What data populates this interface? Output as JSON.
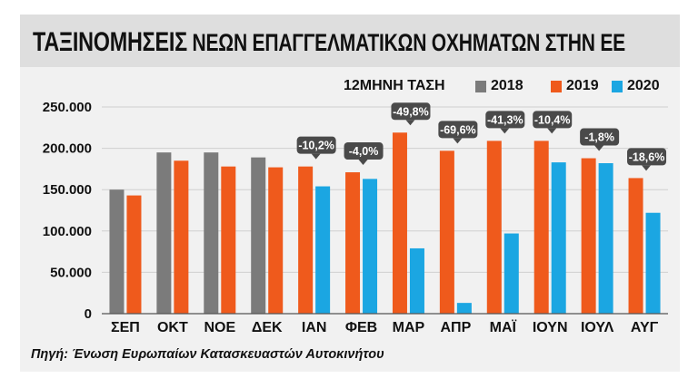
{
  "title_lead": "ΤΑΞΙΝΟΜΗΣΕΙΣ",
  "title_rest": "ΝΕΩΝ ΕΠΑΓΓΕΛΜΑΤΙΚΩΝ ΟΧΗΜΑΤΩΝ ΣΤΗΝ ΕΕ",
  "annotation_header": "12ΜΗΝΗ ΤΑΣΗ",
  "source": "Πηγή: Ένωση Ευρωπαίων Κατασκευαστών Αυτοκινήτου",
  "colors": {
    "2018": "#7b7b7b",
    "2019": "#ef5a1c",
    "2020": "#1ba6e2",
    "callout": "#4a4a4a"
  },
  "chart_data": {
    "type": "bar",
    "title": "ΤΑΞΙΝΟΜΗΣΕΙΣ ΝΕΩΝ ΕΠΑΓΓΕΛΜΑΤΙΚΩΝ ΟΧΗΜΑΤΩΝ ΣΤΗΝ ΕΕ",
    "categories": [
      "ΣΕΠ",
      "ΟΚΤ",
      "ΝΟΕ",
      "ΔΕΚ",
      "ΙΑΝ",
      "ΦΕΒ",
      "ΜΑΡ",
      "ΑΠΡ",
      "ΜΑΪ",
      "ΙΟΥΝ",
      "ΙΟΥΛ",
      "ΑΥΓ"
    ],
    "series": [
      {
        "name": "2018",
        "values": [
          150000,
          195000,
          195000,
          189000,
          null,
          null,
          null,
          null,
          null,
          null,
          null,
          null
        ]
      },
      {
        "name": "2019",
        "values": [
          143000,
          185000,
          178000,
          177000,
          178000,
          171000,
          219000,
          197000,
          209000,
          209000,
          188000,
          164000
        ]
      },
      {
        "name": "2020",
        "values": [
          null,
          null,
          null,
          null,
          154000,
          163000,
          79000,
          13000,
          97000,
          183000,
          182000,
          122000
        ]
      }
    ],
    "yticks": [
      0,
      50000,
      100000,
      150000,
      200000,
      250000
    ],
    "ytick_labels": [
      "0",
      "50.000",
      "100.000",
      "150.000",
      "200.000",
      "250.000"
    ],
    "ylim": [
      0,
      250000
    ],
    "legend": [
      "2018",
      "2019",
      "2020"
    ],
    "annotations": [
      {
        "category": "ΙΑΝ",
        "text": "-10,2%"
      },
      {
        "category": "ΦΕΒ",
        "text": "-4,0%"
      },
      {
        "category": "ΜΑΡ",
        "text": "-49,8%"
      },
      {
        "category": "ΑΠΡ",
        "text": "-69,6%"
      },
      {
        "category": "ΜΑΪ",
        "text": "-41,3%"
      },
      {
        "category": "ΙΟΥΝ",
        "text": "-10,4%"
      },
      {
        "category": "ΙΟΥΛ",
        "text": "-1,8%"
      },
      {
        "category": "ΑΥΓ",
        "text": "-18,6%"
      }
    ]
  }
}
